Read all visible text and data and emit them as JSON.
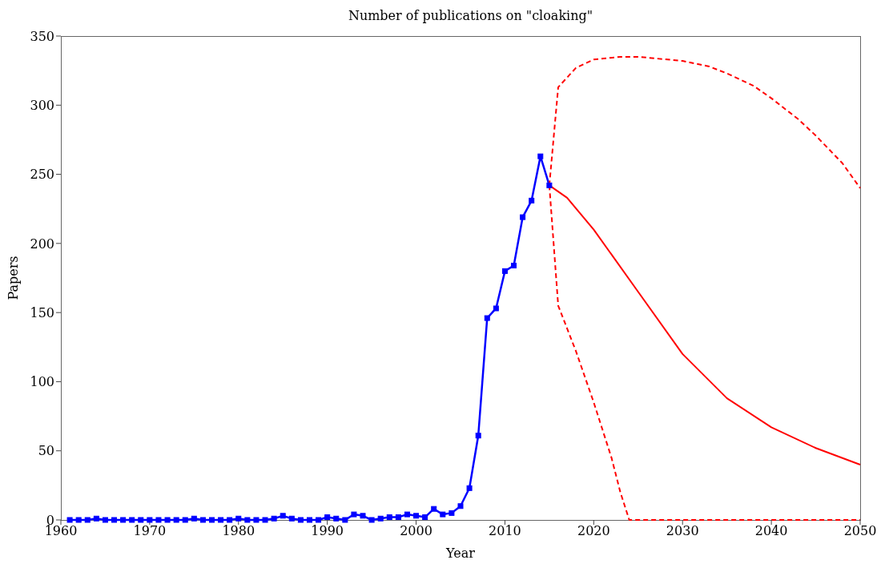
{
  "chart_data": {
    "type": "line",
    "title": "Number of publications on \"cloaking\"",
    "xlabel": "Year",
    "ylabel": "Papers",
    "xlim": [
      1960,
      2050
    ],
    "xticks": [
      1960,
      1970,
      1980,
      1990,
      2000,
      2010,
      2020,
      2030,
      2040,
      2050
    ],
    "ylim": [
      0,
      350
    ],
    "yticks": [
      0,
      50,
      100,
      150,
      200,
      250,
      300,
      350
    ],
    "series": [
      {
        "color": "#0000ff",
        "marker": "square",
        "line_style": "solid",
        "x": [
          1961,
          1962,
          1963,
          1964,
          1965,
          1966,
          1967,
          1968,
          1969,
          1970,
          1971,
          1972,
          1973,
          1974,
          1975,
          1976,
          1977,
          1978,
          1979,
          1980,
          1981,
          1982,
          1983,
          1984,
          1985,
          1986,
          1987,
          1988,
          1989,
          1990,
          1991,
          1992,
          1993,
          1994,
          1995,
          1996,
          1997,
          1998,
          1999,
          2000,
          2001,
          2002,
          2003,
          2004,
          2005,
          2006,
          2007,
          2008,
          2009,
          2010,
          2011,
          2012,
          2013,
          2014,
          2015
        ],
        "values": [
          0,
          0,
          0,
          1,
          0,
          0,
          0,
          0,
          0,
          0,
          0,
          0,
          0,
          0,
          1,
          0,
          0,
          0,
          0,
          1,
          0,
          0,
          0,
          1,
          3,
          1,
          0,
          0,
          0,
          2,
          1,
          0,
          4,
          3,
          0,
          1,
          2,
          2,
          4,
          3,
          2,
          8,
          4,
          5,
          10,
          23,
          61,
          146,
          153,
          180,
          184,
          219,
          231,
          263,
          242
        ]
      },
      {
        "color": "#ff0000",
        "marker": "none",
        "line_style": "solid",
        "x": [
          2015,
          2017,
          2020,
          2025,
          2030,
          2035,
          2040,
          2045,
          2050
        ],
        "values": [
          242,
          233,
          210,
          165,
          120,
          88,
          67,
          52,
          40
        ]
      },
      {
        "color": "#ff0000",
        "marker": "none",
        "line_style": "dashed",
        "x": [
          2015,
          2016,
          2018,
          2020,
          2023,
          2025,
          2030,
          2033,
          2035,
          2038,
          2040,
          2043,
          2045,
          2048,
          2050
        ],
        "values": [
          242,
          313,
          327,
          333,
          335,
          335,
          332,
          328,
          323,
          314,
          305,
          290,
          278,
          258,
          240
        ]
      },
      {
        "color": "#ff0000",
        "marker": "none",
        "line_style": "dashed",
        "x": [
          2015,
          2016,
          2018,
          2020,
          2022,
          2023,
          2024,
          2030,
          2040,
          2050
        ],
        "values": [
          242,
          155,
          122,
          85,
          45,
          20,
          0,
          0,
          0,
          0
        ]
      }
    ]
  }
}
